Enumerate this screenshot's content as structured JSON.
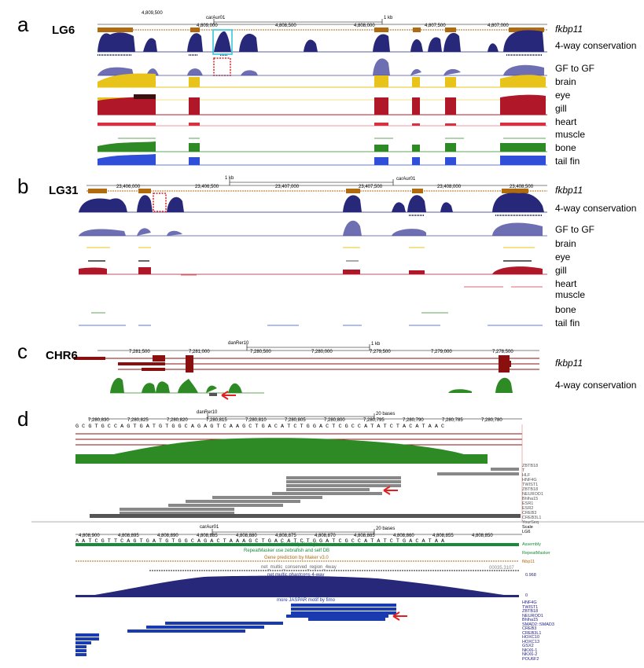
{
  "panels": [
    {
      "letter": "a",
      "chrom": "LG6",
      "scale": "1 kb",
      "assembly": "carAur01",
      "coords": [
        "4,809,500",
        "4,809,000",
        "4,808,500",
        "4,808,000",
        "4,807,500",
        "4,807,000"
      ],
      "tracks": [
        "fkbp11",
        "4-way conservation",
        "GF to GF",
        "brain",
        "eye",
        "gill",
        "heart",
        "muscle",
        "bone",
        "tail fin"
      ]
    },
    {
      "letter": "b",
      "chrom": "LG31",
      "scale": "1 kb",
      "assembly": "carAur01",
      "coords": [
        "23,406,000",
        "23,406,500",
        "23,407,000",
        "23,407,500",
        "23,408,000",
        "23,408,500"
      ],
      "tracks": [
        "fkbp11",
        "4-way conservation",
        "GF to GF",
        "brain",
        "eye",
        "gill",
        "heart",
        "muscle",
        "bone",
        "tail fin"
      ]
    },
    {
      "letter": "c",
      "chrom": "CHR6",
      "scale": "1 kb",
      "assembly": "danRer10",
      "coords": [
        "7,281,500",
        "7,281,000",
        "7,280,500",
        "7,280,000",
        "7,279,500",
        "7,279,000",
        "7,278,500"
      ],
      "tracks": [
        "fkbp11",
        "4-way conservation"
      ]
    },
    {
      "letter": "d"
    }
  ],
  "d_top": {
    "assembly": "danRer10",
    "scale": "20 bases",
    "coords": [
      "7,280,830",
      "7,280,825",
      "7,280,820",
      "7,280,815",
      "7,280,810",
      "7,280,805",
      "7,280,800",
      "7,280,795",
      "7,280,790",
      "7,280,785",
      "7,280,780"
    ],
    "sequence": "G C G T G C C A G T G A T G T G G C A G A G T C A A G C T G A C A T C T G G A C T C G C C A T A T C T A C A T A A C",
    "tfs": [
      "ZBTB18",
      "T",
      "HLF",
      "HNF4G",
      "TWIST1",
      "ZBTB18",
      "NEUROD1",
      "Bhlha15",
      "ESR1",
      "ESR2",
      "CREB3",
      "CREB3L1",
      "YourSeq"
    ]
  },
  "d_bottom": {
    "assembly": "carAur01",
    "chrom": "LG6",
    "scale_word": "Scale",
    "scale": "20 bases",
    "coords": [
      "4,808,900",
      "4,808,895",
      "4,808,890",
      "4,808,885",
      "4,808,880",
      "4,808,875",
      "4,808,870",
      "4,808,865",
      "4,808,860",
      "4,808,855",
      "4,808,850"
    ],
    "sequence": "A A T C G T T C A G T G A T G T G G C A G A C T A A A G C T G A C A T C T G G A T C G C C A T A T C T G A C A T A A",
    "track_titles": [
      "Assembly Contigs",
      "RepeatMasker use zebrafish and self DB",
      "Gene prediction by Maker v3.0",
      "net_multic_conserved_region_4way",
      "net multic phastcons 4-way",
      "more JASPAR motif by fimo"
    ],
    "right_labels": [
      "Assembly",
      "RepeatMasker",
      "fkbp11",
      "0.968",
      "0"
    ],
    "cons_region_id": "00035.3107",
    "tfs": [
      "HNF4G",
      "TWIST1",
      "ZBTB18",
      "NEUROD1",
      "Bhlha15",
      "SMAD2::SMAD3",
      "CREB3",
      "CREB3L1",
      "HOXC10",
      "HOXC13",
      "GSX2",
      "NKX6-1",
      "NKX6-2",
      "POU6F2"
    ]
  },
  "colors": {
    "navy": "#28287a",
    "gold": "#e8c41a",
    "red": "#b0182a",
    "green": "#2e8a24",
    "blue": "#2f4fd8",
    "gene": "#b06a10",
    "cyan": "#37c8d8",
    "arrow": "#e02020"
  }
}
